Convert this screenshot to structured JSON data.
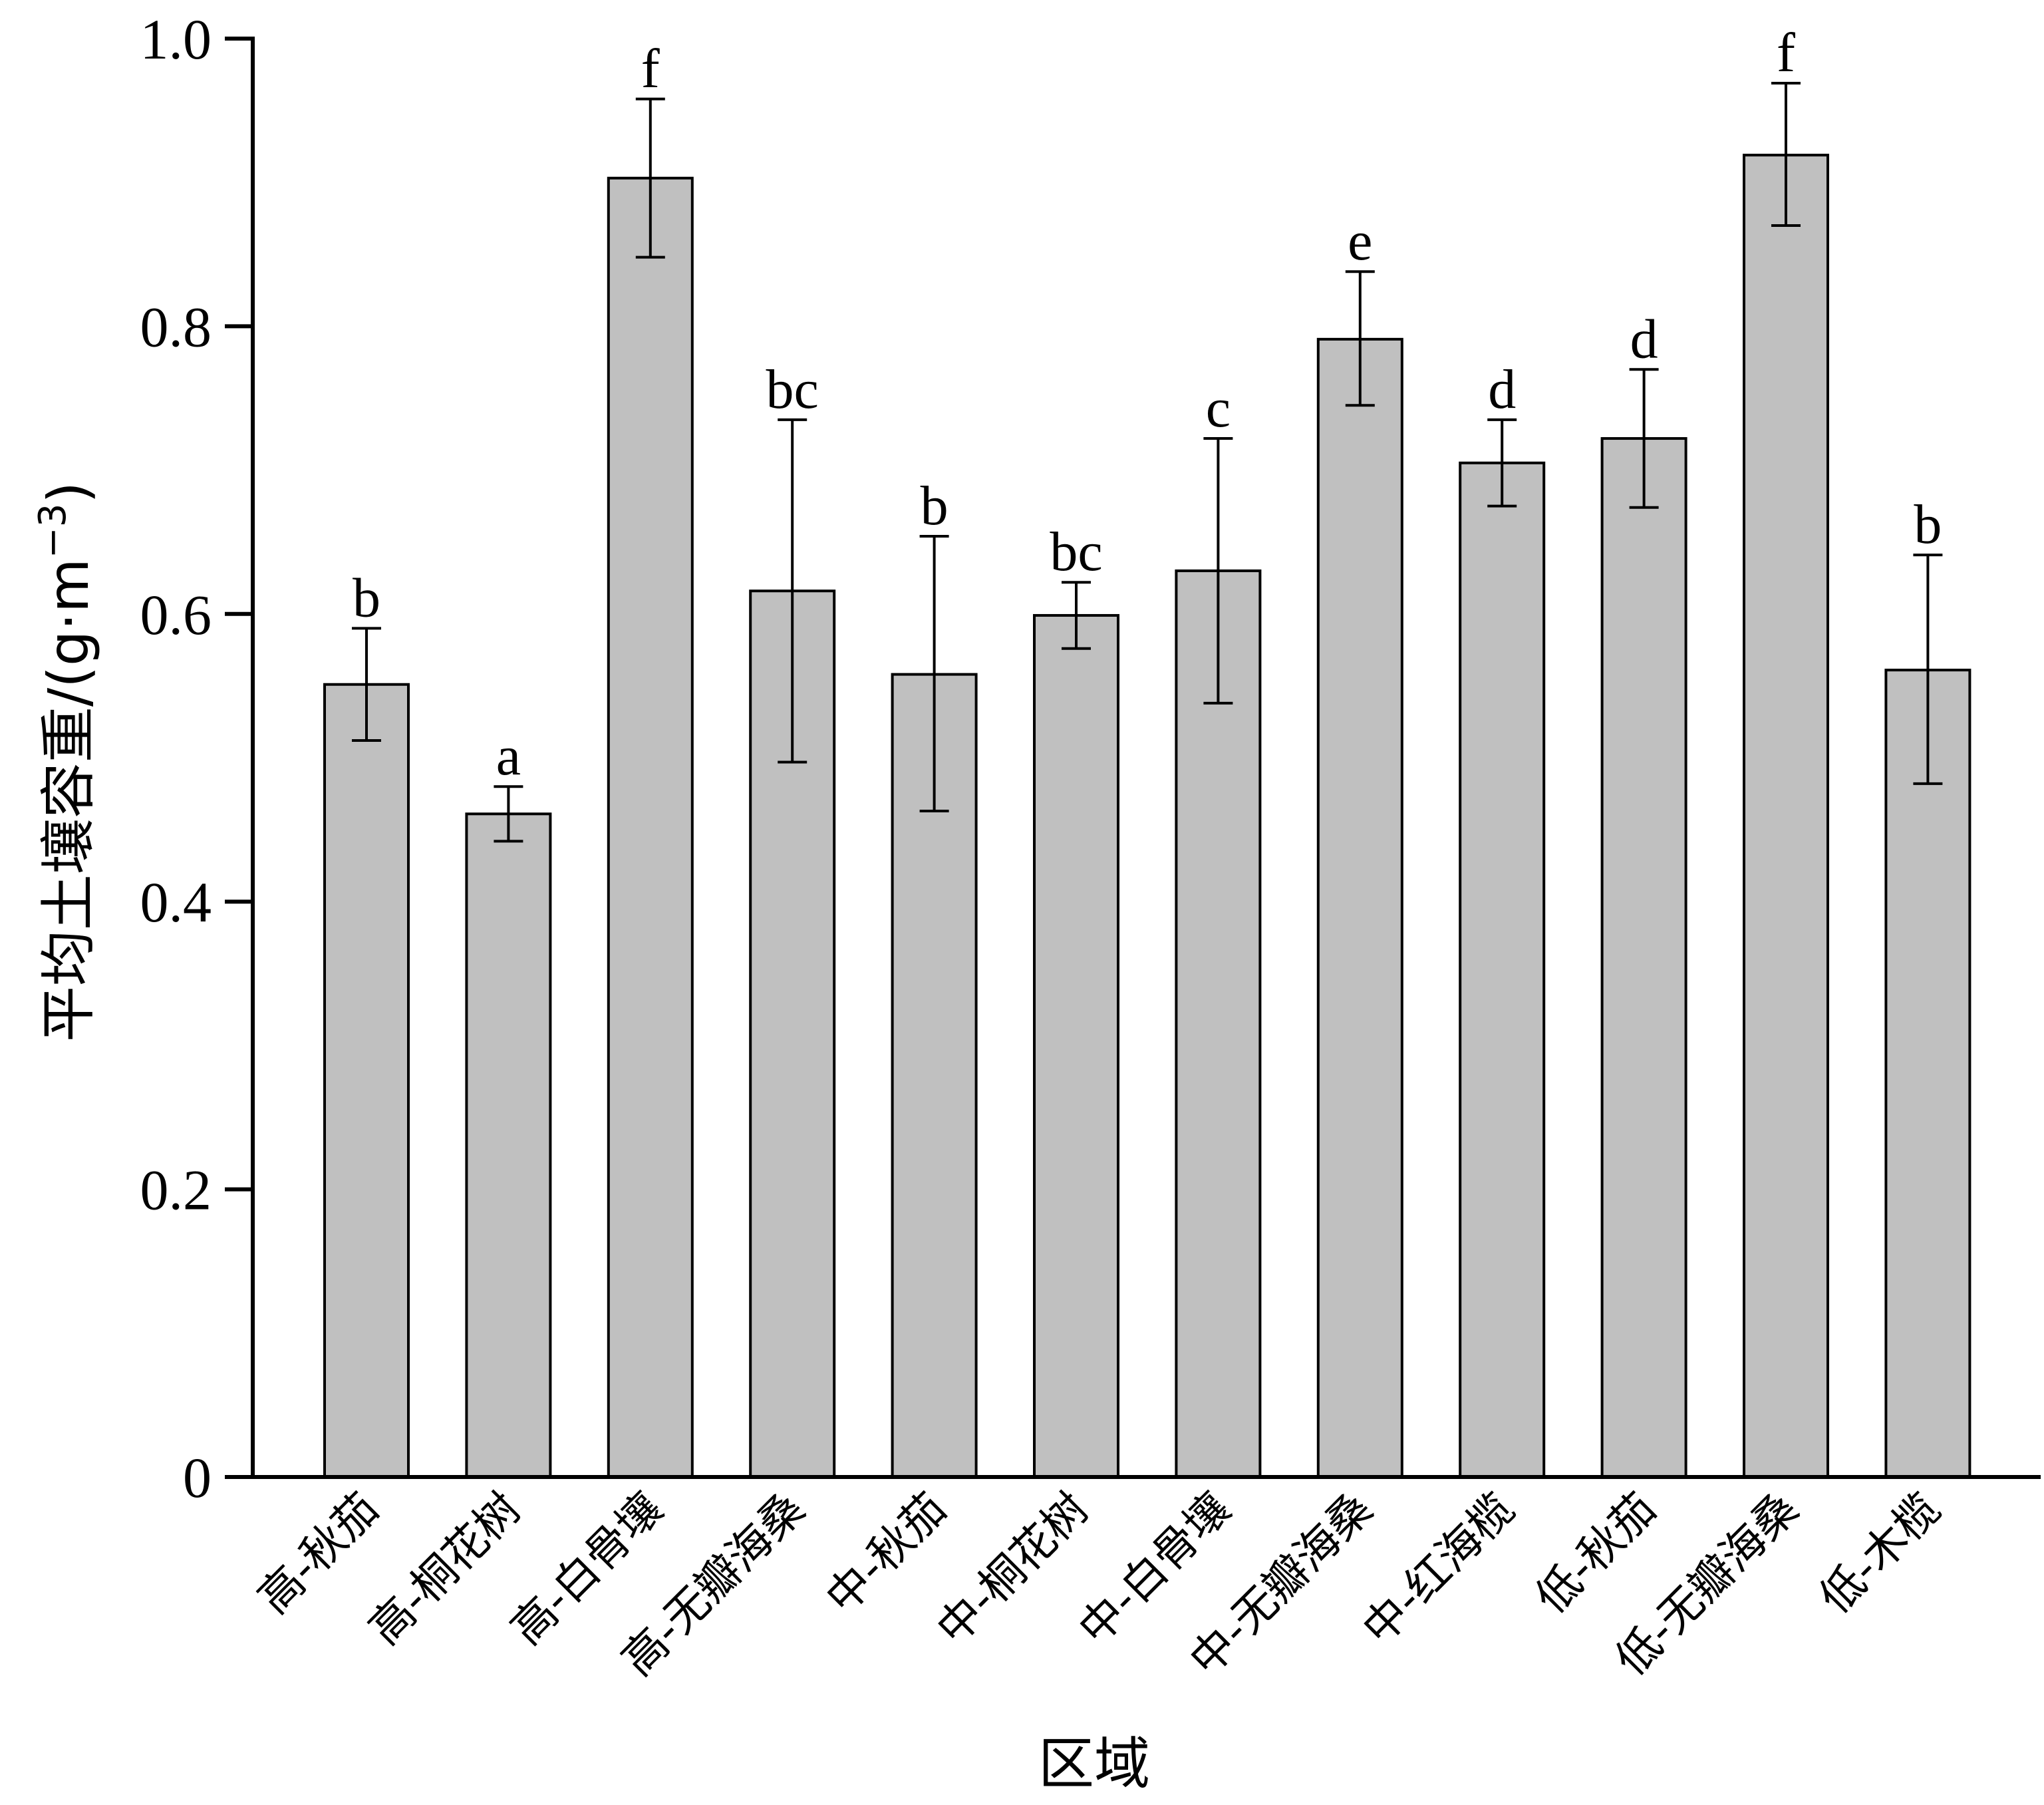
{
  "chart_data": {
    "type": "bar",
    "categories": [
      "高-秋茄",
      "高-桐花树",
      "高-白骨壤",
      "高-无瓣海桑",
      "中-秋茄",
      "中-桐花树",
      "中-白骨壤",
      "中-无瓣海桑",
      "中-红海榄",
      "低-秋茄",
      "低-无瓣海桑",
      "低-木榄"
    ],
    "values": [
      0.551,
      0.461,
      0.903,
      0.616,
      0.558,
      0.599,
      0.63,
      0.791,
      0.705,
      0.722,
      0.919,
      0.561
    ],
    "error_upper": [
      0.59,
      0.48,
      0.958,
      0.735,
      0.654,
      0.622,
      0.722,
      0.838,
      0.735,
      0.77,
      0.969,
      0.641
    ],
    "error_lower": [
      0.512,
      0.442,
      0.848,
      0.497,
      0.463,
      0.576,
      0.538,
      0.745,
      0.675,
      0.674,
      0.87,
      0.482
    ],
    "significance_labels": [
      "b",
      "a",
      "f",
      "bc",
      "b",
      "bc",
      "c",
      "e",
      "d",
      "d",
      "f",
      "b"
    ],
    "xlabel": "区域",
    "ylabel": "平均土壤容重/(g·m",
    "ylabel_superscript": "−3",
    "ylabel_close": ")",
    "ylim": [
      0,
      1.0
    ],
    "yticks": [
      0,
      0.2,
      0.4,
      0.6,
      0.8,
      1.0
    ],
    "ytick_labels": [
      "0",
      "0.2",
      "0.4",
      "0.6",
      "0.8",
      "1.0"
    ],
    "bar_color": "#c0c0c0",
    "grid": false
  }
}
